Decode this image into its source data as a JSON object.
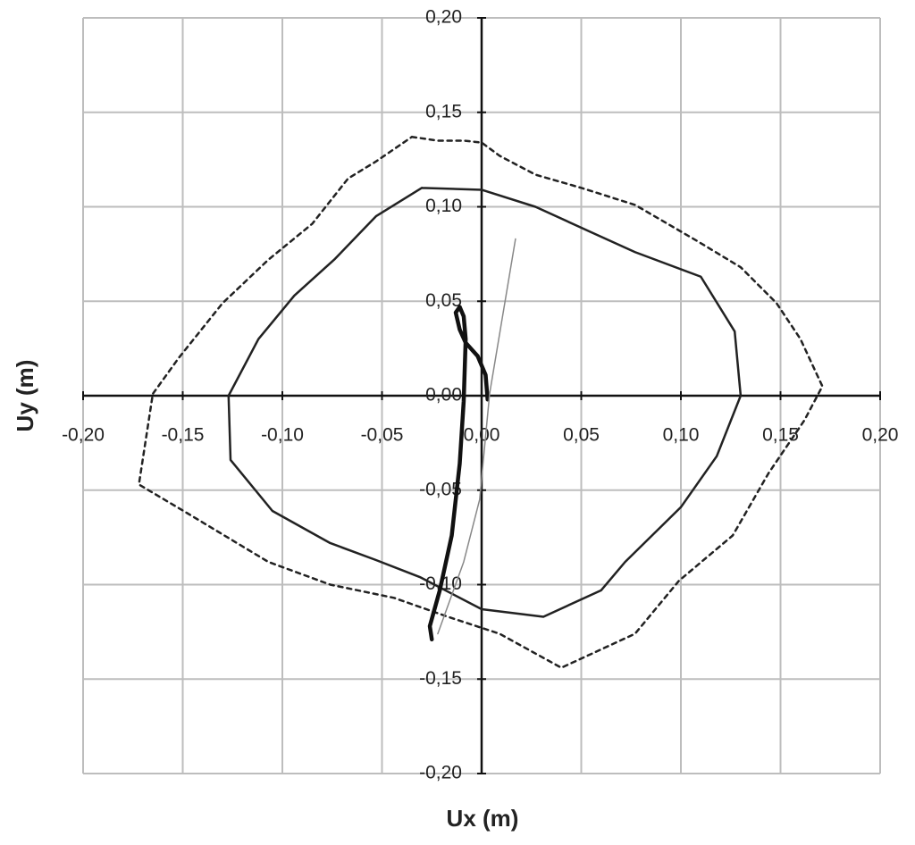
{
  "chart_data": {
    "type": "line",
    "xlabel": "Ux (m)",
    "ylabel": "Uy (m)",
    "xlim": [
      -0.2,
      0.2
    ],
    "ylim": [
      -0.2,
      0.2
    ],
    "xticks": [
      {
        "value": -0.2,
        "label": "-0,20"
      },
      {
        "value": -0.15,
        "label": "-0,15"
      },
      {
        "value": -0.1,
        "label": "-0,10"
      },
      {
        "value": -0.05,
        "label": "-0,05"
      },
      {
        "value": 0,
        "label": "0,00"
      },
      {
        "value": 0.05,
        "label": "0,05"
      },
      {
        "value": 0.1,
        "label": "0,10"
      },
      {
        "value": 0.15,
        "label": "0,15"
      },
      {
        "value": 0.2,
        "label": "0,20"
      }
    ],
    "yticks": [
      {
        "value": -0.2,
        "label": "-0,20"
      },
      {
        "value": -0.15,
        "label": "-0,15"
      },
      {
        "value": -0.1,
        "label": "-0,10"
      },
      {
        "value": -0.05,
        "label": "-0,05"
      },
      {
        "value": 0,
        "label": "0,00"
      },
      {
        "value": 0.05,
        "label": "0,05"
      },
      {
        "value": 0.1,
        "label": "0,10"
      },
      {
        "value": 0.15,
        "label": "0,15"
      },
      {
        "value": 0.2,
        "label": "0,20"
      }
    ],
    "grid": true,
    "series": [
      {
        "color": "#222222",
        "dash": "5,5",
        "width": 2.5,
        "x": [
          -0.035,
          -0.022,
          -0.009,
          0.0,
          0.009,
          0.027,
          0.05,
          0.077,
          0.108,
          0.13,
          0.148,
          0.16,
          0.171,
          0.162,
          0.144,
          0.126,
          0.099,
          0.077,
          0.04,
          0.009,
          -0.017,
          -0.044,
          -0.076,
          -0.107,
          -0.148,
          -0.172,
          -0.165,
          -0.152,
          -0.13,
          -0.107,
          -0.085,
          -0.067,
          -0.053,
          -0.035
        ],
        "y": [
          0.137,
          0.135,
          0.135,
          0.134,
          0.127,
          0.117,
          0.11,
          0.101,
          0.082,
          0.068,
          0.049,
          0.03,
          0.005,
          -0.013,
          -0.041,
          -0.074,
          -0.098,
          -0.126,
          -0.144,
          -0.126,
          -0.117,
          -0.107,
          -0.1,
          -0.088,
          -0.062,
          -0.047,
          0.001,
          0.02,
          0.049,
          0.072,
          0.091,
          0.115,
          0.124,
          0.137
        ]
      },
      {
        "color": "#222222",
        "width": 2.5,
        "x": [
          -0.03,
          0.0,
          0.027,
          0.054,
          0.077,
          0.11,
          0.127,
          0.13,
          0.118,
          0.1,
          0.072,
          0.06,
          0.031,
          0.0,
          -0.031,
          -0.053,
          -0.076,
          -0.105,
          -0.126,
          -0.127,
          -0.112,
          -0.094,
          -0.074,
          -0.053,
          -0.03
        ],
        "y": [
          0.11,
          0.109,
          0.1,
          0.087,
          0.076,
          0.063,
          0.034,
          0.0,
          -0.032,
          -0.059,
          -0.088,
          -0.103,
          -0.117,
          -0.113,
          -0.096,
          -0.087,
          -0.078,
          -0.061,
          -0.034,
          0.0,
          0.03,
          0.053,
          0.072,
          0.095,
          0.11
        ]
      },
      {
        "color": "#111111",
        "width": 4.5,
        "x": [
          0.003,
          0.002,
          -0.002,
          -0.008,
          -0.011,
          -0.013,
          -0.011,
          -0.009,
          -0.008,
          -0.009,
          -0.011,
          -0.015,
          -0.021,
          -0.026,
          -0.025
        ],
        "y": [
          -0.002,
          0.011,
          0.021,
          0.028,
          0.035,
          0.044,
          0.047,
          0.042,
          0.03,
          -0.003,
          -0.036,
          -0.074,
          -0.103,
          -0.122,
          -0.129
        ]
      },
      {
        "color": "#888888",
        "width": 1.5,
        "x": [
          0.017,
          0.004,
          -0.001,
          -0.009,
          -0.022
        ],
        "y": [
          0.083,
          0.001,
          -0.055,
          -0.088,
          -0.126
        ]
      }
    ]
  }
}
